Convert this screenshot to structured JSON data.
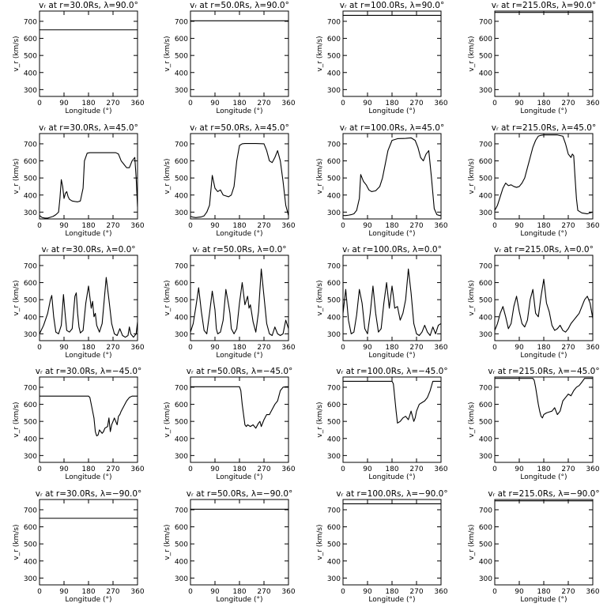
{
  "chart_data": {
    "type": "line",
    "title_template": "v_r at r={r}Rs, λ={lat}°",
    "xlabel": "Longitude (°)",
    "ylabel": "v_r (km/s)",
    "xlim": [
      0,
      360
    ],
    "ylim": [
      260,
      760
    ],
    "xticks": [
      0,
      90,
      180,
      270,
      360
    ],
    "yticks": [
      300,
      400,
      500,
      600,
      700
    ],
    "grid": false,
    "radii_labels": [
      "30.0",
      "50.0",
      "100.0",
      "215.0"
    ],
    "latitude_labels": [
      "90.0",
      "45.0",
      "0.0",
      "−45.0",
      "−90.0"
    ],
    "panels": [
      [
        {
          "title": "vᵣ at r=30.0Rs, λ=90.0°",
          "x": [
            0,
            360
          ],
          "y": [
            650,
            650
          ]
        },
        {
          "title": "vᵣ at r=50.0Rs, λ=90.0°",
          "x": [
            0,
            360
          ],
          "y": [
            703,
            703
          ]
        },
        {
          "title": "vᵣ at r=100.0Rs, λ=90.0°",
          "x": [
            0,
            360
          ],
          "y": [
            735,
            735
          ]
        },
        {
          "title": "vᵣ at r=215.0Rs, λ=90.0°",
          "x": [
            0,
            360
          ],
          "y": [
            752,
            752
          ]
        }
      ],
      [
        {
          "title": "vᵣ at r=30.0Rs, λ=45.0°",
          "x": [
            0,
            10,
            20,
            30,
            40,
            50,
            60,
            70,
            75,
            80,
            85,
            90,
            95,
            100,
            105,
            110,
            120,
            130,
            140,
            150,
            160,
            165,
            175,
            185,
            200,
            220,
            240,
            260,
            280,
            290,
            300,
            310,
            320,
            330,
            340,
            350,
            355,
            360
          ],
          "y": [
            280,
            268,
            265,
            265,
            270,
            275,
            285,
            300,
            380,
            490,
            450,
            380,
            410,
            420,
            390,
            375,
            365,
            362,
            360,
            365,
            440,
            600,
            645,
            648,
            648,
            648,
            648,
            648,
            648,
            640,
            600,
            580,
            560,
            560,
            600,
            620,
            500,
            330
          ]
        },
        {
          "title": "vᵣ at r=50.0Rs, λ=45.0°",
          "x": [
            0,
            10,
            20,
            30,
            40,
            50,
            60,
            70,
            80,
            90,
            100,
            110,
            120,
            130,
            140,
            150,
            160,
            170,
            180,
            190,
            200,
            240,
            270,
            280,
            290,
            300,
            310,
            320,
            330,
            340,
            350,
            360
          ],
          "y": [
            275,
            270,
            268,
            270,
            272,
            278,
            300,
            340,
            515,
            440,
            420,
            430,
            400,
            395,
            390,
            400,
            450,
            600,
            690,
            700,
            702,
            702,
            700,
            660,
            600,
            590,
            620,
            660,
            600,
            480,
            340,
            280
          ]
        },
        {
          "title": "vᵣ at r=100.0Rs, λ=45.0°",
          "x": [
            0,
            10,
            20,
            30,
            40,
            50,
            60,
            65,
            75,
            85,
            95,
            105,
            120,
            135,
            145,
            155,
            165,
            180,
            200,
            230,
            250,
            265,
            275,
            285,
            295,
            305,
            315,
            325,
            335,
            345,
            355,
            360
          ],
          "y": [
            280,
            280,
            282,
            285,
            290,
            310,
            380,
            520,
            480,
            460,
            430,
            420,
            425,
            450,
            500,
            580,
            660,
            720,
            730,
            732,
            735,
            720,
            680,
            620,
            600,
            640,
            660,
            500,
            320,
            285,
            280,
            280
          ]
        },
        {
          "title": "vᵣ at r=215.0Rs, λ=45.0°",
          "x": [
            0,
            10,
            20,
            30,
            40,
            50,
            60,
            70,
            80,
            90,
            100,
            110,
            120,
            130,
            140,
            150,
            160,
            170,
            180,
            200,
            230,
            250,
            260,
            270,
            280,
            285,
            290,
            295,
            300,
            305,
            320,
            340,
            360
          ],
          "y": [
            310,
            340,
            390,
            440,
            470,
            455,
            460,
            450,
            445,
            450,
            470,
            500,
            560,
            620,
            680,
            720,
            745,
            750,
            752,
            752,
            752,
            745,
            700,
            640,
            620,
            640,
            630,
            500,
            380,
            310,
            295,
            290,
            300
          ]
        }
      ],
      [
        {
          "title": "vᵣ at r=30.0Rs, λ=0.0°",
          "x": [
            0,
            15,
            30,
            40,
            45,
            52,
            60,
            70,
            80,
            88,
            95,
            100,
            110,
            120,
            130,
            135,
            140,
            145,
            150,
            160,
            170,
            180,
            190,
            195,
            200,
            205,
            210,
            220,
            230,
            245,
            255,
            265,
            275,
            285,
            295,
            305,
            315,
            325,
            330,
            335,
            345,
            355,
            360
          ],
          "y": [
            300,
            350,
            420,
            500,
            525,
            400,
            310,
            300,
            350,
            530,
            400,
            320,
            310,
            330,
            520,
            540,
            420,
            340,
            305,
            320,
            480,
            580,
            450,
            490,
            400,
            420,
            350,
            310,
            360,
            630,
            500,
            360,
            300,
            290,
            330,
            290,
            280,
            290,
            340,
            300,
            280,
            300,
            370
          ]
        },
        {
          "title": "vᵣ at r=50.0Rs, λ=0.0°",
          "x": [
            0,
            10,
            20,
            30,
            40,
            50,
            60,
            70,
            80,
            90,
            95,
            100,
            110,
            120,
            130,
            140,
            145,
            150,
            160,
            170,
            180,
            190,
            200,
            210,
            215,
            220,
            230,
            240,
            250,
            260,
            270,
            280,
            290,
            300,
            310,
            320,
            330,
            340,
            350,
            360
          ],
          "y": [
            310,
            360,
            460,
            570,
            430,
            320,
            300,
            420,
            550,
            440,
            330,
            300,
            310,
            380,
            560,
            470,
            420,
            330,
            300,
            330,
            480,
            600,
            470,
            520,
            450,
            470,
            370,
            310,
            430,
            680,
            520,
            360,
            300,
            290,
            340,
            300,
            290,
            300,
            380,
            330
          ]
        },
        {
          "title": "vᵣ at r=100.0Rs, λ=0.0°",
          "x": [
            0,
            10,
            20,
            30,
            40,
            50,
            60,
            70,
            80,
            90,
            100,
            110,
            120,
            130,
            140,
            150,
            160,
            170,
            180,
            185,
            190,
            200,
            210,
            220,
            230,
            240,
            250,
            260,
            270,
            280,
            290,
            300,
            310,
            320,
            330,
            340,
            350,
            360
          ],
          "y": [
            420,
            560,
            380,
            300,
            310,
            410,
            560,
            480,
            330,
            300,
            420,
            580,
            420,
            310,
            330,
            480,
            600,
            450,
            580,
            520,
            450,
            460,
            380,
            420,
            500,
            680,
            540,
            360,
            300,
            290,
            310,
            350,
            310,
            290,
            340,
            300,
            350,
            360
          ]
        },
        {
          "title": "vᵣ at r=215.0Rs, λ=0.0°",
          "x": [
            0,
            10,
            20,
            30,
            40,
            50,
            60,
            70,
            80,
            90,
            100,
            110,
            120,
            130,
            140,
            150,
            160,
            170,
            180,
            190,
            200,
            210,
            220,
            230,
            240,
            250,
            260,
            270,
            280,
            290,
            300,
            310,
            320,
            330,
            340,
            350,
            360
          ],
          "y": [
            320,
            360,
            420,
            460,
            400,
            330,
            360,
            460,
            520,
            430,
            360,
            340,
            380,
            500,
            560,
            420,
            400,
            520,
            620,
            480,
            430,
            350,
            320,
            330,
            350,
            320,
            310,
            330,
            360,
            380,
            400,
            420,
            460,
            500,
            520,
            480,
            390
          ]
        }
      ],
      [
        {
          "title": "vᵣ at r=30.0Rs, λ=−45.0°",
          "x": [
            0,
            180,
            185,
            190,
            195,
            200,
            205,
            210,
            215,
            220,
            225,
            230,
            235,
            240,
            250,
            255,
            260,
            265,
            270,
            275,
            280,
            285,
            290,
            295,
            300,
            310,
            320,
            330,
            340,
            360
          ],
          "y": [
            648,
            648,
            640,
            600,
            560,
            520,
            440,
            415,
            420,
            450,
            440,
            430,
            440,
            460,
            470,
            520,
            440,
            480,
            500,
            520,
            500,
            480,
            530,
            540,
            560,
            590,
            620,
            640,
            648,
            648
          ]
        },
        {
          "title": "vᵣ at r=50.0Rs, λ=−45.0°",
          "x": [
            0,
            180,
            185,
            190,
            195,
            200,
            205,
            210,
            220,
            230,
            240,
            250,
            255,
            260,
            270,
            280,
            290,
            300,
            310,
            320,
            330,
            340,
            350,
            360
          ],
          "y": [
            703,
            703,
            680,
            600,
            540,
            480,
            470,
            480,
            470,
            480,
            460,
            490,
            500,
            470,
            510,
            540,
            540,
            570,
            600,
            620,
            680,
            700,
            703,
            703
          ]
        },
        {
          "title": "vᵣ at r=100.0Rs, λ=−45.0°",
          "x": [
            0,
            180,
            185,
            190,
            195,
            200,
            210,
            220,
            230,
            240,
            250,
            260,
            265,
            270,
            280,
            290,
            300,
            310,
            320,
            330,
            340,
            350,
            360
          ],
          "y": [
            735,
            735,
            720,
            640,
            560,
            490,
            500,
            520,
            530,
            510,
            560,
            500,
            520,
            560,
            600,
            610,
            620,
            640,
            680,
            735,
            735,
            735,
            735
          ]
        },
        {
          "title": "vᵣ at r=215.0Rs, λ=−45.0°",
          "x": [
            0,
            140,
            145,
            150,
            155,
            160,
            165,
            170,
            175,
            180,
            190,
            200,
            210,
            220,
            230,
            240,
            250,
            260,
            270,
            280,
            290,
            300,
            310,
            320,
            330,
            340,
            350,
            360
          ],
          "y": [
            752,
            752,
            740,
            700,
            650,
            600,
            560,
            530,
            520,
            540,
            550,
            555,
            560,
            580,
            540,
            560,
            620,
            640,
            660,
            650,
            680,
            700,
            710,
            730,
            752,
            752,
            752,
            752
          ]
        }
      ],
      [
        {
          "title": "vᵣ at r=30.0Rs, λ=−90.0°",
          "x": [
            0,
            360
          ],
          "y": [
            650,
            650
          ]
        },
        {
          "title": "vᵣ at r=50.0Rs, λ=−90.0°",
          "x": [
            0,
            360
          ],
          "y": [
            703,
            703
          ]
        },
        {
          "title": "vᵣ at r=100.0Rs, λ=−90.0°",
          "x": [
            0,
            360
          ],
          "y": [
            735,
            735
          ]
        },
        {
          "title": "vᵣ at r=215.0Rs, λ=−90.0°",
          "x": [
            0,
            360
          ],
          "y": [
            752,
            752
          ]
        }
      ]
    ]
  }
}
